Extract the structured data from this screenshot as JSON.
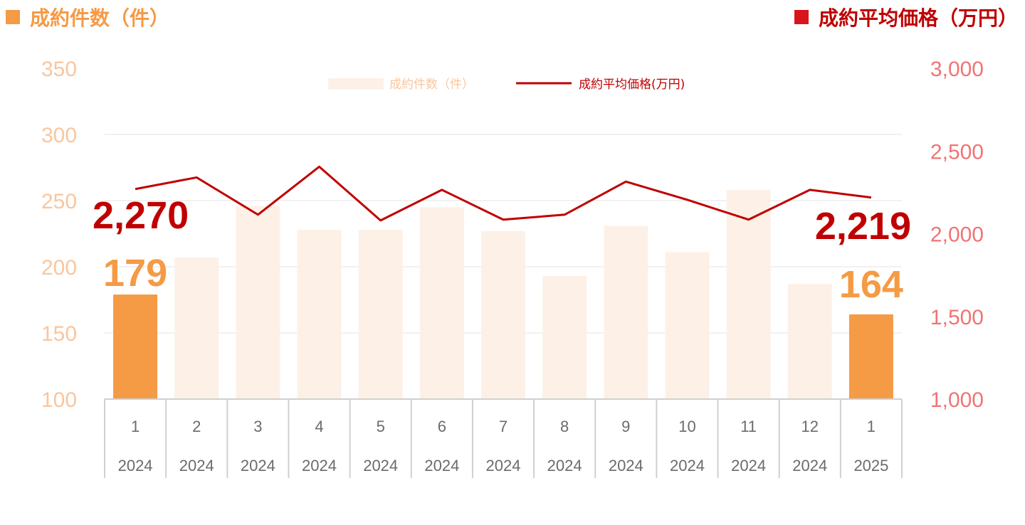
{
  "headers": {
    "left": "成約件数（件）",
    "right": "成約平均価格（万円）"
  },
  "colors": {
    "bar_highlight": "#F59A45",
    "bar_normal": "#FDF1E7",
    "line": "#C00000",
    "left_axis": "#F8C69E",
    "right_axis": "#F07474"
  },
  "chart_data": {
    "type": "bar+line",
    "categories": [
      {
        "month": "1",
        "year": "2024"
      },
      {
        "month": "2",
        "year": "2024"
      },
      {
        "month": "3",
        "year": "2024"
      },
      {
        "month": "4",
        "year": "2024"
      },
      {
        "month": "5",
        "year": "2024"
      },
      {
        "month": "6",
        "year": "2024"
      },
      {
        "month": "7",
        "year": "2024"
      },
      {
        "month": "8",
        "year": "2024"
      },
      {
        "month": "9",
        "year": "2024"
      },
      {
        "month": "10",
        "year": "2024"
      },
      {
        "month": "11",
        "year": "2024"
      },
      {
        "month": "12",
        "year": "2024"
      },
      {
        "month": "1",
        "year": "2025"
      }
    ],
    "series": [
      {
        "name": "成約件数（件）",
        "kind": "bar",
        "axis": "left",
        "values": [
          179,
          207,
          246,
          228,
          228,
          245,
          227,
          193,
          231,
          211,
          258,
          187,
          164
        ],
        "highlighted": [
          0,
          12
        ]
      },
      {
        "name": "成約平均価格(万円)",
        "kind": "line",
        "axis": "right",
        "values": [
          2270,
          2340,
          2115,
          2405,
          2080,
          2265,
          2085,
          2115,
          2315,
          2205,
          2085,
          2265,
          2219
        ]
      }
    ],
    "left_axis": {
      "min": 100,
      "max": 350,
      "ticks": [
        "350",
        "300",
        "250",
        "200",
        "150",
        "100"
      ]
    },
    "right_axis": {
      "min": 1000,
      "max": 3000,
      "ticks": [
        "3,000",
        "2,500",
        "2,000",
        "1,500",
        "1,000"
      ]
    },
    "grid": true,
    "legend_position": "top",
    "data_labels": {
      "bar_first": "179",
      "bar_last": "164",
      "line_first": "2,270",
      "line_last": "2,219"
    }
  }
}
